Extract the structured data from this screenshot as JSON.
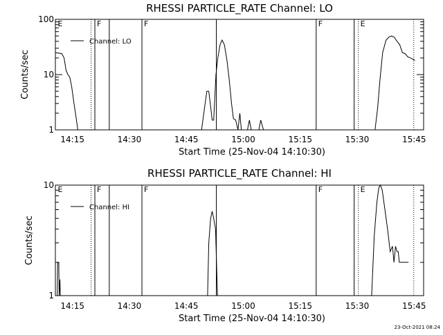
{
  "footer_stamp": "23-Oct-2021 08:24",
  "x_tick_labels": [
    "14:15",
    "14:30",
    "14:45",
    "15:00",
    "15:15",
    "15:30",
    "15:45"
  ],
  "xlabel": "Start Time (25-Nov-04 14:10:30)",
  "colors": {
    "background": "#ffffff",
    "foreground": "#000000"
  },
  "chart_data": [
    {
      "type": "line",
      "title": "RHESSI PARTICLE_RATE Channel: LO",
      "xlabel": "Start Time (25-Nov-04 14:10:30)",
      "ylabel": "Counts/sec",
      "y_scale": "log",
      "ylim": [
        1,
        100
      ],
      "y_tick_labels": [
        "1",
        "10",
        "100"
      ],
      "x_unit": "minutes after 14:10:30",
      "xlim": [
        0,
        97
      ],
      "x_tick_values": [
        4.5,
        19.5,
        34.5,
        49.5,
        64.5,
        79.5,
        94.5
      ],
      "legend": {
        "entries": [
          "Channel: LO"
        ],
        "position": "top-left"
      },
      "series": [
        {
          "name": "Channel: LO",
          "points": [
            [
              0,
              25
            ],
            [
              1.7,
              24
            ],
            [
              2.3,
              20
            ],
            [
              2.8,
              12
            ],
            [
              3.3,
              10
            ],
            [
              3.8,
              9
            ],
            [
              4.3,
              6
            ],
            [
              4.9,
              3
            ],
            [
              5.4,
              1.8
            ],
            [
              5.9,
              1
            ],
            [
              0,
              0
            ],
            [
              38.5,
              1
            ],
            [
              39.3,
              2.5
            ],
            [
              39.9,
              5
            ],
            [
              40.4,
              5
            ],
            [
              40.8,
              3
            ],
            [
              41.3,
              1.5
            ],
            [
              41.7,
              1.5
            ],
            [
              42.3,
              10
            ],
            [
              42.8,
              20
            ],
            [
              43.4,
              35
            ],
            [
              43.9,
              42
            ],
            [
              44.5,
              35
            ],
            [
              45.2,
              18
            ],
            [
              45.8,
              8
            ],
            [
              46.4,
              3
            ],
            [
              46.9,
              1.6
            ],
            [
              47.5,
              1.5
            ],
            [
              48.1,
              1
            ],
            [
              48.6,
              2
            ],
            [
              49.0,
              1
            ],
            [
              0,
              0
            ],
            [
              50.6,
              1
            ],
            [
              51.1,
              1.5
            ],
            [
              51.6,
              1
            ],
            [
              0,
              0
            ],
            [
              53.6,
              1
            ],
            [
              54.1,
              1.5
            ],
            [
              54.8,
              1
            ],
            [
              0,
              0
            ],
            [
              84.2,
              1
            ],
            [
              84.9,
              2.5
            ],
            [
              85.5,
              8
            ],
            [
              86.2,
              25
            ],
            [
              87.1,
              42
            ],
            [
              87.9,
              48
            ],
            [
              88.6,
              50
            ],
            [
              89.3,
              47
            ],
            [
              90.0,
              40
            ],
            [
              90.7,
              35
            ],
            [
              91.4,
              25
            ],
            [
              92.1,
              24
            ],
            [
              92.8,
              21
            ],
            [
              93.5,
              20
            ],
            [
              94.2,
              19
            ],
            [
              94.7,
              18
            ]
          ]
        }
      ],
      "annotations": [
        {
          "kind": "solid",
          "x": 10.4,
          "label": "F"
        },
        {
          "kind": "dotted",
          "x": 9.4,
          "label": ""
        },
        {
          "kind": "solid",
          "x": 14.2,
          "label": ""
        },
        {
          "kind": "solid",
          "x": 22.8,
          "label": "F"
        },
        {
          "kind": "solid",
          "x": 42.4,
          "label": ""
        },
        {
          "kind": "solid",
          "x": 68.7,
          "label": "F"
        },
        {
          "kind": "solid",
          "x": 78.7,
          "label": ""
        },
        {
          "kind": "dotted",
          "x": 79.8,
          "label": "E"
        },
        {
          "kind": "dotted",
          "x": 94.4,
          "label": ""
        },
        {
          "kind": "text-only",
          "x": 0.1,
          "label": "E"
        }
      ]
    },
    {
      "type": "line",
      "title": "RHESSI PARTICLE_RATE Channel: HI",
      "xlabel": "Start Time (25-Nov-04 14:10:30)",
      "ylabel": "Counts/sec",
      "y_scale": "log",
      "ylim": [
        1,
        10
      ],
      "y_tick_labels": [
        "1",
        "10"
      ],
      "x_unit": "minutes after 14:10:30",
      "xlim": [
        0,
        97
      ],
      "x_tick_values": [
        4.5,
        19.5,
        34.5,
        49.5,
        64.5,
        79.5,
        94.5
      ],
      "legend": {
        "entries": [
          "Channel: HI"
        ],
        "position": "top-left"
      },
      "series": [
        {
          "name": "Channel: HI",
          "points": [
            [
              0.5,
              1
            ],
            [
              0.6,
              2
            ],
            [
              0.9,
              2
            ],
            [
              1.0,
              1
            ],
            [
              1.2,
              1.4
            ],
            [
              1.3,
              1
            ],
            [
              0,
              0
            ],
            [
              40.1,
              1
            ],
            [
              40.4,
              3
            ],
            [
              40.9,
              5
            ],
            [
              41.3,
              5.8
            ],
            [
              41.7,
              5
            ],
            [
              42.2,
              4
            ],
            [
              42.7,
              1
            ],
            [
              0,
              0
            ],
            [
              83.3,
              1
            ],
            [
              84.0,
              3.5
            ],
            [
              84.7,
              7
            ],
            [
              85.2,
              9.5
            ],
            [
              85.6,
              10
            ],
            [
              86.1,
              9
            ],
            [
              86.8,
              6
            ],
            [
              87.5,
              4
            ],
            [
              88.2,
              2.5
            ],
            [
              88.8,
              2.8
            ],
            [
              89.2,
              2
            ],
            [
              89.6,
              2.8
            ],
            [
              90.0,
              2.5
            ],
            [
              90.3,
              2.5
            ],
            [
              90.6,
              2
            ],
            [
              91.0,
              2
            ],
            [
              91.4,
              2
            ],
            [
              92.0,
              2
            ],
            [
              92.5,
              2
            ],
            [
              93.0,
              2
            ]
          ]
        }
      ],
      "annotations": [
        {
          "kind": "solid",
          "x": 10.4,
          "label": "F"
        },
        {
          "kind": "dotted",
          "x": 9.4,
          "label": ""
        },
        {
          "kind": "solid",
          "x": 14.2,
          "label": ""
        },
        {
          "kind": "solid",
          "x": 22.8,
          "label": "F"
        },
        {
          "kind": "solid",
          "x": 42.4,
          "label": ""
        },
        {
          "kind": "solid",
          "x": 68.7,
          "label": "F"
        },
        {
          "kind": "solid",
          "x": 78.7,
          "label": ""
        },
        {
          "kind": "dotted",
          "x": 79.8,
          "label": "E"
        },
        {
          "kind": "dotted",
          "x": 94.4,
          "label": ""
        },
        {
          "kind": "text-only",
          "x": 0.1,
          "label": "E"
        }
      ]
    }
  ]
}
